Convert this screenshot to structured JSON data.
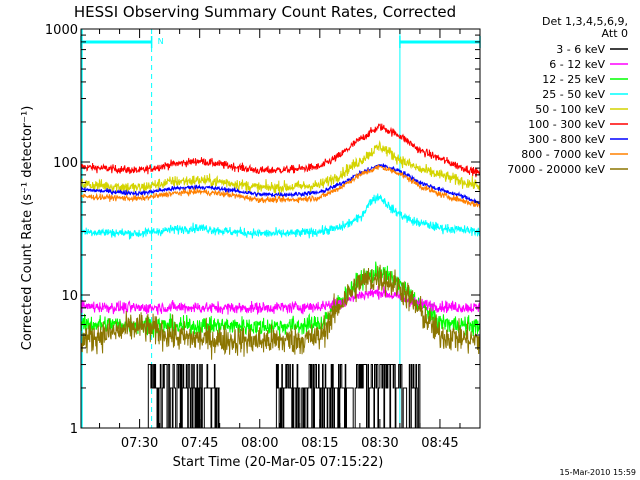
{
  "chart_data": {
    "type": "line",
    "title": "HESSI Observing Summary Count Rates, Corrected",
    "ylabel": "Corrected Count Rate (s⁻¹ detector⁻¹)",
    "xlabel": "Start Time (20-Mar-05 07:15:22)",
    "yscale": "log",
    "ylim": [
      1,
      1000
    ],
    "xlim": [
      "07:15:22",
      "08:55:00"
    ],
    "y_ticks": [
      "1",
      "10",
      "100",
      "1000"
    ],
    "x_ticks": [
      "07:30",
      "07:45",
      "08:00",
      "08:15",
      "08:30",
      "08:45"
    ],
    "legend": {
      "placement": "right",
      "header": [
        "Det 1,3,4,5,6,9,",
        "Att 0"
      ],
      "entries": [
        {
          "label": "3 - 6 keV",
          "color": "#000000"
        },
        {
          "label": "6 - 12 keV",
          "color": "#ff00ff"
        },
        {
          "label": "12 - 25 keV",
          "color": "#00ff00"
        },
        {
          "label": "25 - 50 keV",
          "color": "#00ffff"
        },
        {
          "label": "50 - 100 keV",
          "color": "#d4d400"
        },
        {
          "label": "100 - 300 keV",
          "color": "#ff0000"
        },
        {
          "label": "300 - 800 keV",
          "color": "#0000ff"
        },
        {
          "label": "800 - 7000 keV",
          "color": "#ff8000"
        },
        {
          "label": "7000 - 20000 keV",
          "color": "#8b7500"
        }
      ]
    },
    "annotations": [
      {
        "text": "N",
        "color": "#00ffff"
      }
    ],
    "spacecraft_night": [
      [
        "07:15:22",
        "07:33:00"
      ],
      [
        "08:35:00",
        "08:55:00"
      ]
    ],
    "series": [
      {
        "name": "100 - 300 keV",
        "color": "#ff0000",
        "noise": 0.035,
        "x": [
          "07:15:22",
          "07:30",
          "07:38",
          "07:45",
          "07:52",
          "08:00",
          "08:08",
          "08:15",
          "08:20",
          "08:25",
          "08:30",
          "08:35",
          "08:40",
          "08:45",
          "08:50",
          "08:55"
        ],
        "y": [
          92,
          86,
          96,
          102,
          94,
          86,
          88,
          92,
          112,
          148,
          185,
          158,
          122,
          106,
          92,
          82
        ]
      },
      {
        "name": "50 - 100 keV",
        "color": "#d4d400",
        "noise": 0.05,
        "x": [
          "07:15:22",
          "07:30",
          "07:38",
          "07:45",
          "07:52",
          "08:00",
          "08:08",
          "08:15",
          "08:20",
          "08:25",
          "08:30",
          "08:35",
          "08:40",
          "08:45",
          "08:50",
          "08:55"
        ],
        "y": [
          68,
          64,
          71,
          73,
          70,
          64,
          65,
          67,
          80,
          102,
          132,
          104,
          88,
          80,
          72,
          66
        ]
      },
      {
        "name": "300 - 800 keV",
        "color": "#0000ff",
        "noise": 0.02,
        "x": [
          "07:15:22",
          "07:30",
          "07:38",
          "07:45",
          "07:52",
          "08:00",
          "08:08",
          "08:15",
          "08:20",
          "08:25",
          "08:30",
          "08:35",
          "08:40",
          "08:45",
          "08:50",
          "08:55"
        ],
        "y": [
          62,
          58,
          63,
          65,
          62,
          57,
          57,
          59,
          68,
          82,
          95,
          86,
          70,
          62,
          56,
          49
        ]
      },
      {
        "name": "800 - 7000 keV",
        "color": "#ff8000",
        "noise": 0.025,
        "x": [
          "07:15:22",
          "07:30",
          "07:38",
          "07:45",
          "07:52",
          "08:00",
          "08:08",
          "08:15",
          "08:20",
          "08:25",
          "08:30",
          "08:35",
          "08:40",
          "08:45",
          "08:50",
          "08:55"
        ],
        "y": [
          55,
          53,
          58,
          60,
          57,
          52,
          52,
          54,
          64,
          80,
          92,
          82,
          66,
          57,
          52,
          47
        ]
      },
      {
        "name": "25 - 50 keV",
        "color": "#00ffff",
        "noise": 0.04,
        "x": [
          "07:15:22",
          "07:30",
          "07:38",
          "07:45",
          "07:52",
          "08:00",
          "08:08",
          "08:15",
          "08:20",
          "08:25",
          "08:28",
          "08:30",
          "08:33",
          "08:38",
          "08:45",
          "08:55"
        ],
        "y": [
          30,
          29,
          31,
          32,
          30,
          29,
          29,
          30,
          32,
          38,
          52,
          55,
          44,
          36,
          32,
          30
        ]
      },
      {
        "name": "12 - 25 keV",
        "color": "#00ff00",
        "noise": 0.08,
        "x": [
          "07:15:22",
          "07:30",
          "07:40",
          "07:50",
          "08:00",
          "08:10",
          "08:15",
          "08:20",
          "08:25",
          "08:30",
          "08:35",
          "08:40",
          "08:45",
          "08:55"
        ],
        "y": [
          6,
          6,
          5.8,
          5.9,
          5.8,
          5.9,
          6,
          9,
          13,
          15,
          12,
          8.5,
          6.2,
          5.8
        ]
      },
      {
        "name": "6 - 12 keV",
        "color": "#ff00ff",
        "noise": 0.05,
        "x": [
          "07:15:22",
          "07:30",
          "07:40",
          "07:50",
          "08:00",
          "08:10",
          "08:15",
          "08:20",
          "08:25",
          "08:30",
          "08:35",
          "08:40",
          "08:45",
          "08:55"
        ],
        "y": [
          8.2,
          8.0,
          8.1,
          8.0,
          8.0,
          8.1,
          8.2,
          8.8,
          10,
          10.5,
          9.6,
          8.6,
          8.2,
          8.0
        ]
      },
      {
        "name": "7000 - 20000 keV",
        "color": "#8b7500",
        "noise": 0.13,
        "x": [
          "07:15:22",
          "07:30",
          "07:40",
          "07:50",
          "08:00",
          "08:10",
          "08:15",
          "08:20",
          "08:25",
          "08:30",
          "08:35",
          "08:40",
          "08:45",
          "08:55"
        ],
        "y": [
          4.6,
          5.8,
          4.8,
          4.6,
          4.5,
          4.6,
          4.8,
          8.5,
          12.5,
          13.5,
          11.5,
          7.5,
          5.0,
          4.5
        ]
      },
      {
        "name": "3 - 6 keV",
        "color": "#000000",
        "noise": 0,
        "segments": [
          [
            "07:32",
            "07:50"
          ],
          [
            "08:04",
            "08:40"
          ]
        ],
        "x": [
          "07:32",
          "07:42",
          "07:50",
          "08:04",
          "08:15",
          "08:25",
          "08:30",
          "08:35",
          "08:40"
        ],
        "y": [
          2.2,
          2.0,
          1.9,
          1.9,
          2.0,
          2.3,
          2.5,
          2.2,
          1.8
        ]
      }
    ]
  },
  "footer": {
    "timestamp": "15-Mar-2010 15:59"
  }
}
